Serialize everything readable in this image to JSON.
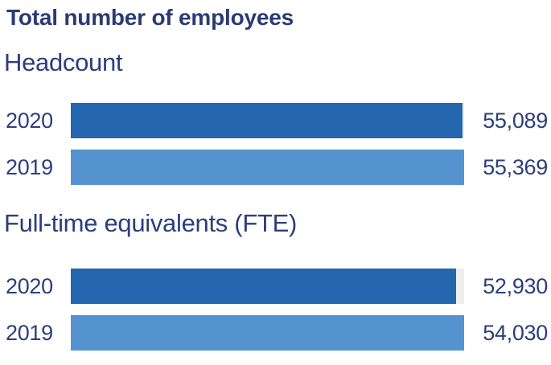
{
  "title": "Total number of employees",
  "colors": {
    "bar_2020": "#2467ae",
    "bar_2019": "#5593d0",
    "track": "#efeeec",
    "text_navy": "#2c3e7c",
    "background": "#ffffff"
  },
  "chart_data": {
    "type": "bar",
    "orientation": "horizontal",
    "title": "Total number of employees",
    "grid": false,
    "legend": false,
    "value_labels_position": "right",
    "sections": [
      {
        "label": "Headcount",
        "categories": [
          "2020",
          "2019"
        ],
        "values": [
          55089,
          55369
        ],
        "display_values": [
          "55,089",
          "55,369"
        ],
        "bar_colors": [
          "#2467ae",
          "#5593d0"
        ],
        "xlim": [
          0,
          55369
        ]
      },
      {
        "label": "Full-time equivalents (FTE)",
        "categories": [
          "2020",
          "2019"
        ],
        "values": [
          52930,
          54030
        ],
        "display_values": [
          "52,930",
          "54,030"
        ],
        "bar_colors": [
          "#2467ae",
          "#5593d0"
        ],
        "xlim": [
          0,
          54030
        ]
      }
    ]
  }
}
